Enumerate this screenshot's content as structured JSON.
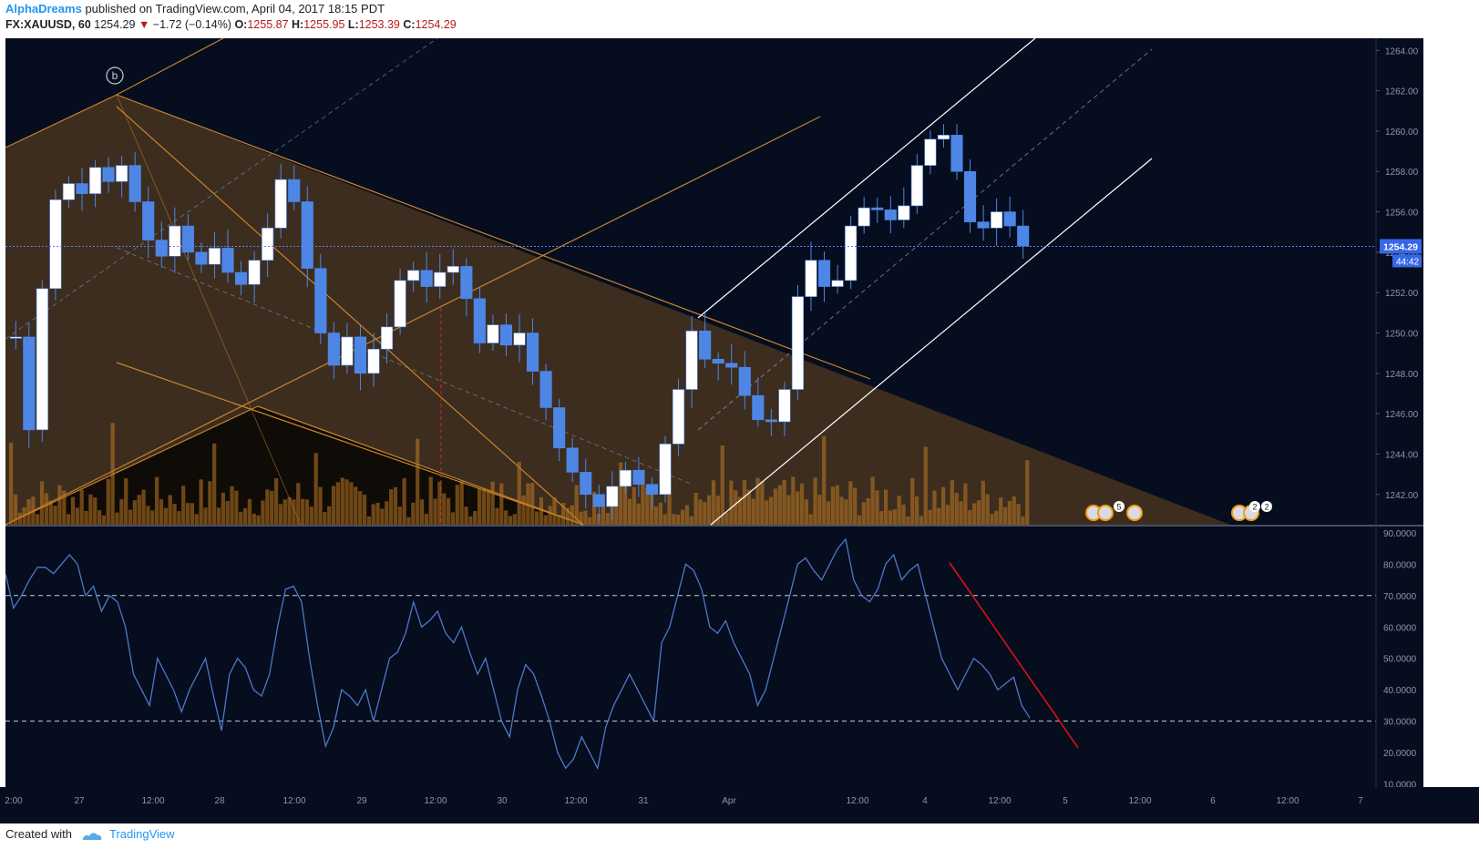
{
  "header": {
    "author": "AlphaDreams",
    "published_text": "published on TradingView.com, April 04, 2017 18:15 PDT",
    "symbol": "FX:XAUUSD, 60",
    "last": "1254.29",
    "change": "−1.72 (−0.14%)",
    "o_label": "O:",
    "o_value": "1255.87",
    "h_label": "H:",
    "h_value": "1255.95",
    "l_label": "L:",
    "l_value": "1253.39",
    "c_label": "C:",
    "c_value": "1254.29"
  },
  "footer": {
    "created_with": "Created with",
    "brand": "TradingView"
  },
  "colors": {
    "background": "#050d1f",
    "candle": "#4e86e6",
    "wedge": "#8a5a1e",
    "rsi_line": "#4f78c8",
    "trendline_red": "#e01010",
    "price_line": "#5b80ff"
  },
  "chart_data": [
    {
      "type": "candlestick",
      "symbol": "FX:XAUUSD",
      "interval": "60",
      "y_ticks": [
        "1264.00",
        "1262.00",
        "1260.00",
        "1258.00",
        "1256.00",
        "1254.00",
        "1252.00",
        "1250.00",
        "1248.00",
        "1246.00",
        "1244.00",
        "1242.00"
      ],
      "ylim": [
        1240.5,
        1264.6
      ],
      "x_ticks": [
        "2:00",
        "27",
        "12:00",
        "28",
        "12:00",
        "29",
        "12:00",
        "30",
        "12:00",
        "31",
        "Apr",
        "12:00",
        "4",
        "12:00",
        "5",
        "12:00",
        "6",
        "12:00",
        "7"
      ],
      "current_price_label": "1254.29",
      "countdown_label": "44:42",
      "current_price": 1254.29,
      "wave_label": "b",
      "event_badges": [
        "5",
        "2",
        "2"
      ],
      "close_path": [
        1249.8,
        1245.2,
        1252.2,
        1256.6,
        1257.4,
        1256.9,
        1258.2,
        1257.5,
        1258.3,
        1256.5,
        1254.6,
        1253.8,
        1255.3,
        1254.0,
        1253.4,
        1254.2,
        1253.0,
        1252.4,
        1253.6,
        1255.2,
        1257.6,
        1256.5,
        1253.2,
        1250.0,
        1248.4,
        1249.8,
        1248.0,
        1249.2,
        1250.3,
        1252.6,
        1253.1,
        1252.3,
        1253.0,
        1253.3,
        1251.7,
        1249.5,
        1250.4,
        1249.4,
        1250.0,
        1248.1,
        1246.3,
        1244.3,
        1243.1,
        1242.0,
        1241.4,
        1242.4,
        1243.2,
        1242.5,
        1242.0,
        1244.5,
        1247.2,
        1250.1,
        1248.7,
        1248.5,
        1248.3,
        1246.9,
        1245.7,
        1245.6,
        1247.2,
        1251.8,
        1253.6,
        1252.3,
        1252.6,
        1255.3,
        1256.2,
        1256.1,
        1255.6,
        1256.3,
        1258.3,
        1259.6,
        1259.8,
        1258.0,
        1255.5,
        1255.2,
        1256.0,
        1255.3,
        1254.3
      ]
    },
    {
      "type": "line",
      "name": "RSI",
      "y_ticks": [
        "90.0000",
        "80.0000",
        "70.0000",
        "60.0000",
        "50.0000",
        "40.0000",
        "30.0000",
        "20.0000",
        "10.0000"
      ],
      "ylim": [
        9,
        92
      ],
      "levels": [
        70,
        30
      ],
      "values": [
        77,
        66,
        70,
        75,
        79,
        79,
        77,
        80,
        83,
        80,
        70,
        73,
        65,
        70,
        68,
        60,
        45,
        40,
        35,
        50,
        45,
        40,
        33,
        40,
        45,
        50,
        38,
        27,
        45,
        50,
        47,
        40,
        38,
        45,
        60,
        72,
        73,
        68,
        50,
        35,
        22,
        28,
        40,
        38,
        35,
        40,
        30,
        40,
        50,
        52,
        58,
        68,
        60,
        62,
        65,
        58,
        55,
        60,
        52,
        45,
        50,
        40,
        30,
        25,
        40,
        48,
        45,
        38,
        30,
        20,
        15,
        18,
        25,
        20,
        15,
        28,
        35,
        40,
        45,
        40,
        35,
        30,
        55,
        60,
        70,
        80,
        78,
        72,
        60,
        58,
        62,
        55,
        50,
        45,
        35,
        40,
        50,
        60,
        70,
        80,
        82,
        78,
        75,
        80,
        85,
        88,
        75,
        70,
        68,
        72,
        80,
        83,
        75,
        78,
        80,
        70,
        60,
        50,
        45,
        40,
        45,
        50,
        48,
        45,
        40,
        42,
        44,
        35,
        31
      ],
      "red_trendline": [
        [
          0,
          80.5
        ],
        [
          1,
          21.5
        ]
      ]
    }
  ]
}
